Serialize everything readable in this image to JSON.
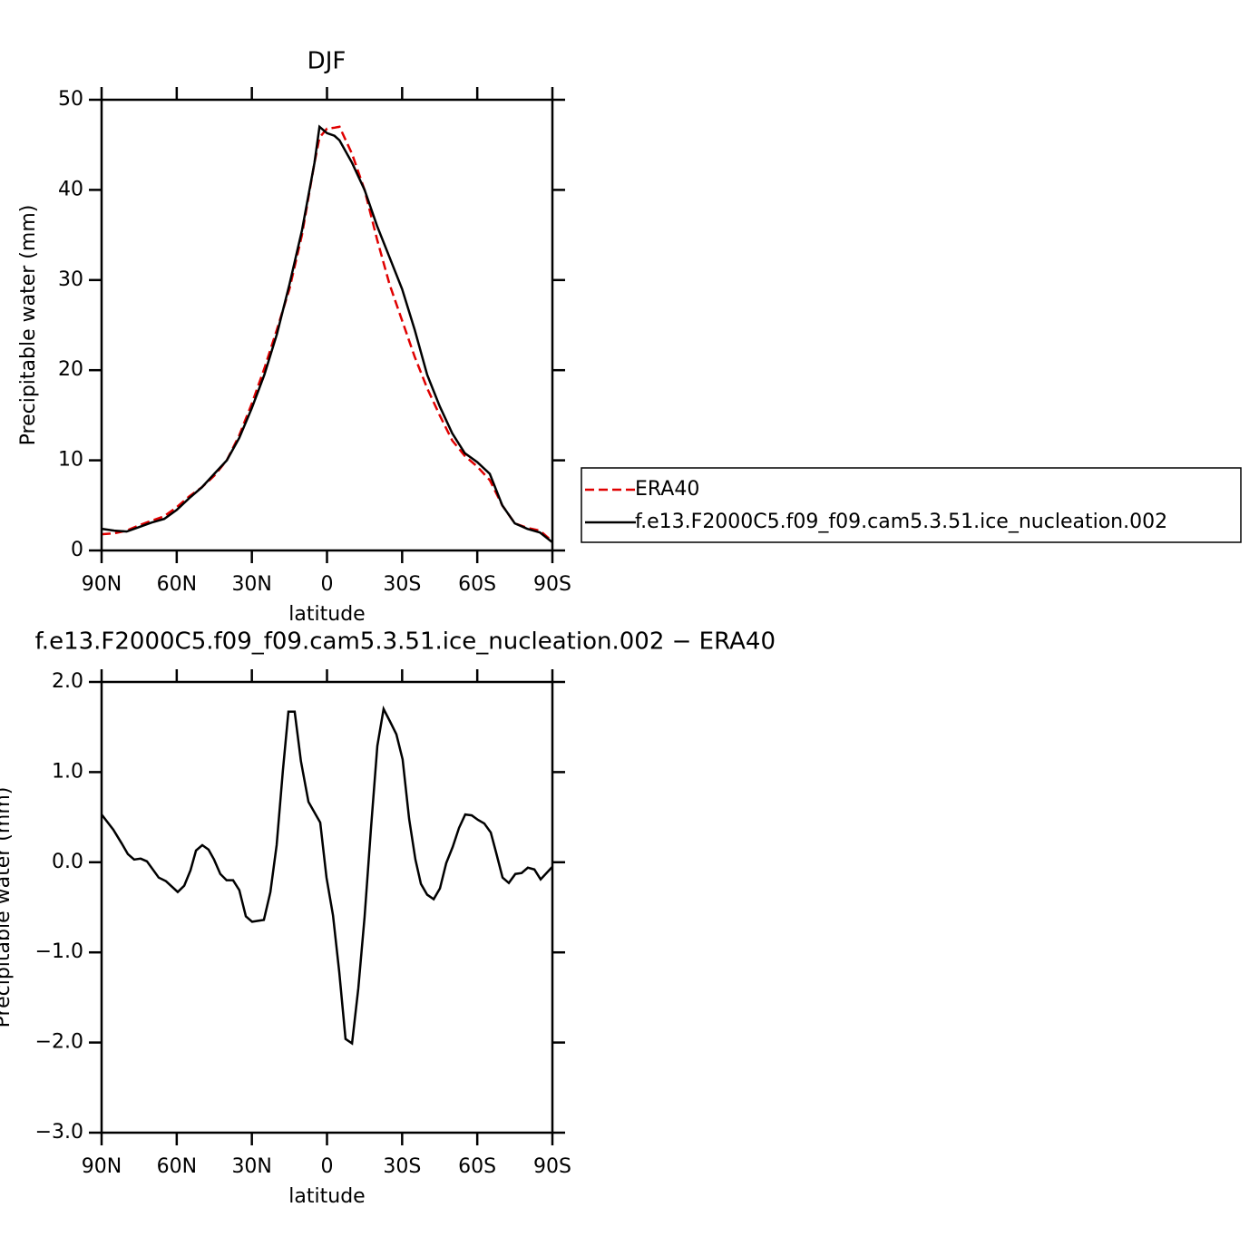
{
  "chart_data": [
    {
      "type": "line",
      "title": "DJF",
      "xlabel": "latitude",
      "ylabel": "Precipitable water (mm)",
      "x": [
        90,
        85,
        80,
        75,
        70,
        65,
        60,
        55,
        50,
        45,
        40,
        35,
        30,
        25,
        20,
        15,
        10,
        5,
        3,
        0,
        -3,
        -5,
        -10,
        -15,
        -20,
        -25,
        -30,
        -35,
        -40,
        -45,
        -50,
        -55,
        -60,
        -65,
        -70,
        -75,
        -80,
        -85,
        -90
      ],
      "series": [
        {
          "name": "ERA40",
          "color": "#e00000",
          "line_style": "dashed",
          "values": [
            1.8,
            1.9,
            2.2,
            2.8,
            3.3,
            3.8,
            4.8,
            6.0,
            7.0,
            8.3,
            10.0,
            12.8,
            16.3,
            20.2,
            24.5,
            29.0,
            35.0,
            43.0,
            45.8,
            46.8,
            46.9,
            47.0,
            44.0,
            40.0,
            34.5,
            29.5,
            25.5,
            21.5,
            18.0,
            15.0,
            12.2,
            10.5,
            9.3,
            7.8,
            5.0,
            3.0,
            2.5,
            2.2,
            1.0
          ]
        },
        {
          "name": "f.e13.F2000C5.f09_f09.cam5.3.51.ice_nucleation.002",
          "color": "#000000",
          "line_style": "solid",
          "values": [
            2.4,
            2.2,
            2.1,
            2.6,
            3.1,
            3.5,
            4.5,
            5.8,
            7.0,
            8.5,
            10.0,
            12.5,
            15.8,
            19.5,
            24.0,
            29.5,
            35.5,
            43.0,
            47.0,
            46.3,
            46.0,
            45.5,
            43.0,
            40.0,
            36.0,
            32.5,
            29.0,
            24.5,
            19.5,
            16.0,
            13.0,
            10.8,
            9.8,
            8.5,
            5.0,
            3.0,
            2.4,
            2.0,
            0.9
          ]
        }
      ],
      "xlim": [
        90,
        -90
      ],
      "xticks": [
        {
          "value": 90,
          "label": "90N"
        },
        {
          "value": 60,
          "label": "60N"
        },
        {
          "value": 30,
          "label": "30N"
        },
        0,
        {
          "value": -30,
          "label": "30S"
        },
        {
          "value": -60,
          "label": "60S"
        },
        {
          "value": -90,
          "label": "90S"
        }
      ],
      "ylim": [
        0,
        50
      ],
      "yticks": [
        0,
        10,
        20,
        30,
        40,
        50
      ],
      "legend": "right"
    },
    {
      "type": "line",
      "title": "f.e13.F2000C5.f09_f09.cam5.3.51.ice_nucleation.002 − ERA40",
      "xlabel": "latitude",
      "ylabel": "Precipitable water (mm)",
      "x": [
        90,
        85.3,
        82,
        79.5,
        77,
        74.4,
        71.9,
        67.2,
        64.3,
        59.6,
        57,
        54.5,
        52.3,
        49.8,
        47.3,
        45.1,
        42.6,
        40.1,
        37.5,
        35,
        32.4,
        29.9,
        25.2,
        22.6,
        20.1,
        17.6,
        15.4,
        12.9,
        10.4,
        7.4,
        2.7,
        0.2,
        -2.4,
        -4.9,
        -7.4,
        -10,
        -12.5,
        -15,
        -17.6,
        -20.1,
        -22.6,
        -25.2,
        -27.7,
        -30.2,
        -32.8,
        -35.3,
        -37.5,
        -40,
        -42.6,
        -45.1,
        -47.6,
        -50.2,
        -52.7,
        -55.2,
        -57.8,
        -60.3,
        -62.8,
        -65.4,
        -67.5,
        -70.1,
        -72.6,
        -75.2,
        -77.7,
        -80.2,
        -82.8,
        -85.3,
        -90
      ],
      "series": [
        {
          "color": "#000000",
          "line_style": "solid",
          "values": [
            0.53,
            0.36,
            0.21,
            0.09,
            0.03,
            0.04,
            0.01,
            -0.17,
            -0.21,
            -0.33,
            -0.26,
            -0.09,
            0.13,
            0.19,
            0.14,
            0.03,
            -0.13,
            -0.2,
            -0.2,
            -0.31,
            -0.6,
            -0.66,
            -0.64,
            -0.33,
            0.19,
            1.02,
            1.67,
            1.67,
            1.12,
            0.67,
            0.44,
            -0.17,
            -0.59,
            -1.22,
            -1.96,
            -2.01,
            -1.4,
            -0.61,
            0.39,
            1.29,
            1.7,
            1.56,
            1.42,
            1.14,
            0.48,
            0.03,
            -0.24,
            -0.36,
            -0.41,
            -0.29,
            -0.01,
            0.17,
            0.38,
            0.53,
            0.52,
            0.47,
            0.43,
            0.33,
            0.11,
            -0.17,
            -0.23,
            -0.13,
            -0.12,
            -0.06,
            -0.08,
            -0.19,
            -0.05
          ]
        }
      ],
      "xlim": [
        90,
        -90
      ],
      "xticks": [
        {
          "value": 90,
          "label": "90N"
        },
        {
          "value": 60,
          "label": "60N"
        },
        {
          "value": 30,
          "label": "30N"
        },
        0,
        {
          "value": -30,
          "label": "30S"
        },
        {
          "value": -60,
          "label": "60S"
        },
        {
          "value": -90,
          "label": "90S"
        }
      ],
      "ylim": [
        -3,
        2
      ],
      "yticks": [
        {
          "value": -3,
          "label": "−3.0"
        },
        {
          "value": -2,
          "label": "−2.0"
        },
        {
          "value": -1,
          "label": "−1.0"
        },
        {
          "value": 0,
          "label": "0.0"
        },
        {
          "value": 1,
          "label": "1.0"
        },
        {
          "value": 2,
          "label": "2.0"
        }
      ]
    }
  ]
}
